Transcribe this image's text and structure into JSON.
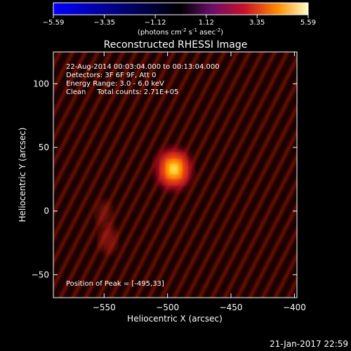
{
  "chart_data": {
    "type": "heatmap",
    "title": "Reconstructed RHESSI Image",
    "xlabel": "Heliocentric X (arcsec)",
    "ylabel": "Heliocentric Y (arcsec)",
    "xlim": [
      -590,
      -398
    ],
    "ylim": [
      -68,
      125
    ],
    "x_ticks": [
      -550,
      -500,
      -450,
      -400
    ],
    "y_ticks": [
      -50,
      0,
      50,
      100
    ],
    "colorbar": {
      "min": -5.59,
      "max": 5.59,
      "ticks": [
        -5.59,
        -3.35,
        -1.12,
        1.12,
        3.35,
        5.59
      ],
      "label_main": "(photons cm",
      "label_exp1": "-2",
      "label_mid1": " s",
      "label_exp2": "-1",
      "label_mid2": " asec",
      "label_exp3": "-2",
      "label_end": ")"
    },
    "annotations": [
      "22-Aug-2014 00:03:04.000 to 00:13:04.000",
      "Detectors: 3F 6F 9F, Att 0",
      "Energy Range: 3.0 - 6.0 keV",
      "Clean     Total counts: 2.71E+05"
    ],
    "peak_text": "Position of Peak = [-495,33]",
    "sources": [
      {
        "x": -495,
        "y": 33,
        "value": 5.59
      },
      {
        "x": -547,
        "y": -22,
        "value": 2.6
      },
      {
        "x": -550,
        "y": -2,
        "value": 1.4
      }
    ]
  },
  "footer": {
    "timestamp": "21-Jan-2017 22:59"
  }
}
